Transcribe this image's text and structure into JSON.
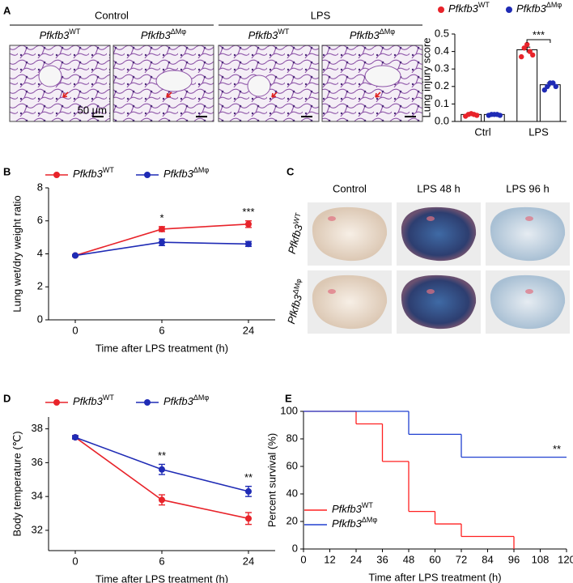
{
  "chart_data": [
    {
      "type": "bar",
      "label": "A",
      "categories": [
        "Ctrl",
        "LPS"
      ],
      "ylabel": "Lung injury score",
      "ylim": [
        0,
        0.5
      ],
      "yticks": [
        {
          "value": 0,
          "label": "0.0"
        },
        0.1,
        0.2,
        0.3,
        0.4,
        0.5
      ],
      "legend": "top",
      "series": [
        {
          "name": "Pfkfb3",
          "superscript": "WT",
          "color": "#e8232a",
          "values": [
            0.04,
            0.41
          ],
          "errors": [
            0.004,
            0.015
          ],
          "points": [
            [
              0.03,
              0.04,
              0.045,
              0.04,
              0.035
            ],
            [
              0.37,
              0.42,
              0.44,
              0.4,
              0.38
            ]
          ]
        },
        {
          "name": "Pfkfb3",
          "superscript": "ΔMφ",
          "color": "#1f2bb5",
          "values": [
            0.04,
            0.21
          ],
          "errors": [
            0.003,
            0.01
          ],
          "points": [
            [
              0.035,
              0.04,
              0.04,
              0.04,
              0.035
            ],
            [
              0.18,
              0.2,
              0.22,
              0.22,
              0.2
            ]
          ]
        }
      ],
      "annotations": [
        null,
        "***"
      ]
    },
    {
      "type": "line",
      "label": "B",
      "categories": [
        0,
        6,
        24
      ],
      "xlabel": "Time after LPS treatment (h)",
      "ylabel": "Lung wet/dry weight ratio",
      "ylim": [
        0,
        8
      ],
      "yticks": [
        0,
        2,
        4,
        6,
        8
      ],
      "legend": "top",
      "series": [
        {
          "name": "Pfkfb3",
          "superscript": "WT",
          "color": "#e8232a",
          "values": [
            3.9,
            5.5,
            5.8
          ],
          "errors": [
            0.05,
            0.15,
            0.2
          ]
        },
        {
          "name": "Pfkfb3",
          "superscript": "ΔMφ",
          "color": "#1f2bb5",
          "values": [
            3.9,
            4.7,
            4.6
          ],
          "errors": [
            0.05,
            0.2,
            0.15
          ]
        }
      ],
      "annotations": [
        null,
        "*",
        "***"
      ]
    },
    {
      "type": "line",
      "label": "D",
      "categories": [
        0,
        6,
        24
      ],
      "xlabel": "Time after LPS treatment (h)",
      "ylabel": "Body temperature (℃)",
      "ylim": [
        30.8,
        38.7
      ],
      "yticks": [
        32,
        34,
        36,
        38
      ],
      "legend": "top",
      "series": [
        {
          "name": "Pfkfb3",
          "superscript": "WT",
          "color": "#e8232a",
          "values": [
            37.5,
            33.8,
            32.7
          ],
          "errors": [
            0.1,
            0.3,
            0.35
          ]
        },
        {
          "name": "Pfkfb3",
          "superscript": "ΔMφ",
          "color": "#1f2bb5",
          "values": [
            37.5,
            35.6,
            34.3
          ],
          "errors": [
            0.1,
            0.3,
            0.3
          ]
        }
      ],
      "annotations": [
        null,
        "**",
        "**"
      ]
    },
    {
      "type": "step",
      "label": "E",
      "xlabel": "Time after LPS treatment (h)",
      "ylabel": "Percent survival (%)",
      "xlim": [
        0,
        120
      ],
      "xticks": [
        0,
        12,
        24,
        36,
        48,
        60,
        72,
        84,
        96,
        108,
        120
      ],
      "ylim": [
        0,
        100
      ],
      "yticks": [
        0,
        20,
        40,
        60,
        80,
        100
      ],
      "legend": "lower left",
      "series": [
        {
          "name": "Pfkfb3",
          "superscript": "WT",
          "color": "#ff2020",
          "x": [
            0,
            24,
            36,
            48,
            60,
            72,
            96
          ],
          "values": [
            100,
            90.9,
            63.6,
            27.3,
            18.2,
            9.1,
            0
          ]
        },
        {
          "name": "Pfkfb3",
          "superscript": "ΔMφ",
          "color": "#2040d0",
          "x": [
            0,
            48,
            72,
            120
          ],
          "values": [
            100,
            83.3,
            66.7,
            66.7
          ],
          "annotation": "**"
        }
      ]
    }
  ],
  "panel_a_images": {
    "groups": [
      "Control",
      "LPS"
    ],
    "images": [
      {
        "name": "Pfkfb3",
        "superscript": "WT"
      },
      {
        "name": "Pfkfb3",
        "superscript": "ΔMφ"
      },
      {
        "name": "Pfkfb3",
        "superscript": "WT"
      },
      {
        "name": "Pfkfb3",
        "superscript": "ΔMφ"
      }
    ],
    "scale_bar": "50 μm"
  },
  "panel_c": {
    "label": "C",
    "columns": [
      "Control",
      "LPS 48 h",
      "LPS 96 h"
    ],
    "rows": [
      {
        "name": "Pfkfb3",
        "superscript": "WT"
      },
      {
        "name": "Pfkfb3",
        "superscript": "ΔMφ"
      }
    ]
  }
}
